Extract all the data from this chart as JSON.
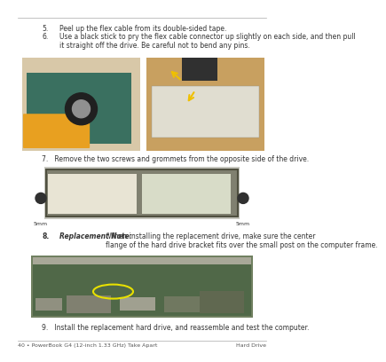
{
  "page_title_left": "40 • PowerBook G4 (12-inch 1.33 GHz) Take Apart",
  "page_title_right": "Hard Drive",
  "background_color": "#ffffff",
  "text_color": "#333333",
  "gray_text_color": "#555555",
  "step5_num": "5.",
  "step5_text": "Peel up the flex cable from its double-sided tape.",
  "step6_num": "6.",
  "step6_text": "Use a black stick to pry the flex cable connector up slightly on each side, and then pull\nit straight off the drive. Be careful not to bend any pins.",
  "step7_text": "7.   Remove the two screws and grommets from the opposite side of the drive.",
  "step8_num": "8.",
  "step8_bold": "Replacement Note:",
  "step8_rest": " When installing the replacement drive, make sure the center\nflange of the hard drive bracket fits over the small post on the computer frame.",
  "step9_text": "9.   Install the replacement hard drive, and reassemble and test the computer.",
  "screws_label_left": "5mm",
  "screws_label_right": "5mm",
  "img1_left_color": "#c8b898",
  "img1_left_board": "#3a7060",
  "img1_left_tape": "#e8a020",
  "img1_right_bg": "#d4a060",
  "img1_right_hdd": "#c09050",
  "img2_bg": "#c8c8c0",
  "img2_hdd_frame": "#909080",
  "img2_label1": "#e8e4d4",
  "img2_label2": "#d8dcc8",
  "img2_grommet": "#303030",
  "img3_bg": "#708060",
  "img3_board": "#506848",
  "img3_highlight": "#e8e000",
  "img3_top_metal": "#a8a898"
}
